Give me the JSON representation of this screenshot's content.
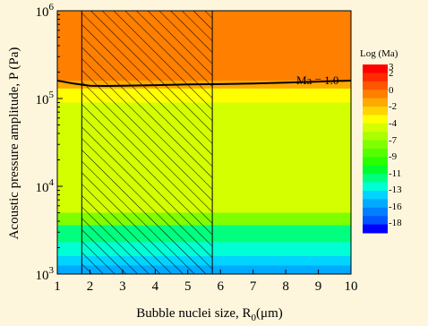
{
  "chart_data": {
    "type": "heatmap",
    "title": "",
    "xlabel": "Bubble nuclei size, R",
    "xlabel_sub": "0",
    "xlabel_unit": "(μm)",
    "ylabel": "Acoustic pressure amplitude, P (Pa)",
    "x_ticks": [
      1,
      2,
      3,
      4,
      5,
      6,
      7,
      8,
      9,
      10
    ],
    "xlim": [
      1,
      10
    ],
    "y_scale": "log",
    "ylim": [
      1000,
      1000000
    ],
    "y_ticks": [
      {
        "value": 1000,
        "base": "10",
        "exp": "3"
      },
      {
        "value": 10000,
        "base": "10",
        "exp": "4"
      },
      {
        "value": 100000,
        "base": "10",
        "exp": "5"
      },
      {
        "value": 1000000,
        "base": "10",
        "exp": "6"
      }
    ],
    "colorbar": {
      "title": "Log (Ma)",
      "tick_labels": [
        "3",
        "2",
        "0",
        "-2",
        "-4",
        "-7",
        "-9",
        "-11",
        "-13",
        "-16",
        "-18"
      ],
      "colors": [
        "#ff0000",
        "#ff2a00",
        "#ff5500",
        "#ff7f00",
        "#ffaa00",
        "#ffd400",
        "#ffff00",
        "#d4ff00",
        "#aaff00",
        "#7fff00",
        "#55ff00",
        "#2aff00",
        "#00ff2a",
        "#00ff7f",
        "#00ffd4",
        "#00d4ff",
        "#00aaff",
        "#007fff",
        "#0055ff",
        "#0000ff"
      ]
    },
    "contour_label": "Ma = 1.0",
    "threshold_curve": {
      "x": [
        1,
        1.5,
        2,
        2.5,
        3,
        4,
        5,
        6,
        7,
        8,
        9,
        10
      ],
      "y": [
        160000,
        148000,
        140000,
        139000,
        140000,
        142000,
        145000,
        146000,
        148000,
        152000,
        156000,
        160000
      ]
    },
    "hatched_region": {
      "x_start": 1.75,
      "x_end": 5.75
    },
    "bands": [
      {
        "y_low": 160000,
        "y_high": 1000000,
        "color": "#ff7f00"
      },
      {
        "y_low": 120000,
        "y_high": 160000,
        "color": "#ffaa00"
      },
      {
        "y_low": 90000,
        "y_high": 130000,
        "color": "#ffff00"
      },
      {
        "y_low": 5000,
        "y_high": 90000,
        "color": "#d4ff00"
      },
      {
        "y_low": 3600,
        "y_high": 5000,
        "color": "#7fff00"
      },
      {
        "y_low": 2300,
        "y_high": 3600,
        "color": "#00ff7f"
      },
      {
        "y_low": 1600,
        "y_high": 2300,
        "color": "#00ffd4"
      },
      {
        "y_low": 1250,
        "y_high": 1600,
        "color": "#00d4ff"
      },
      {
        "y_low": 1000,
        "y_high": 1250,
        "color": "#00aaff"
      }
    ]
  }
}
